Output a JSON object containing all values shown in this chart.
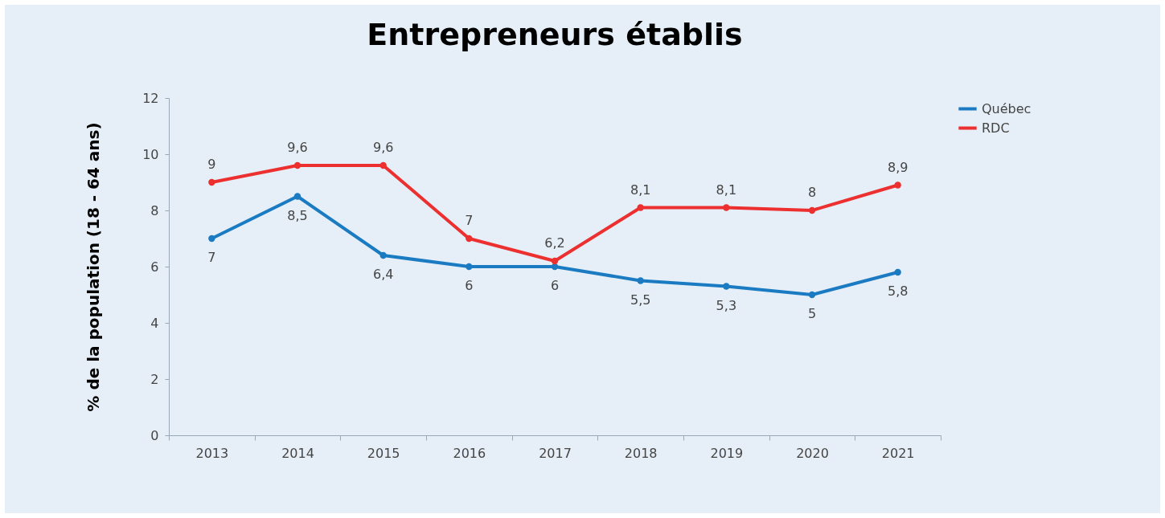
{
  "chart_data": {
    "type": "line",
    "title": "Entrepreneurs établis",
    "ylabel": "% de la population (18 - 64 ans)",
    "categories": [
      "2013",
      "2014",
      "2015",
      "2016",
      "2017",
      "2018",
      "2019",
      "2020",
      "2021"
    ],
    "series": [
      {
        "name": "Québec",
        "color": "#1b7bc2",
        "values": [
          7,
          8.5,
          6.4,
          6,
          6,
          5.5,
          5.3,
          5,
          5.8
        ],
        "value_labels": [
          "7",
          "8,5",
          "6,4",
          "6",
          "6",
          "5,5",
          "5,3",
          "5",
          "5,8"
        ]
      },
      {
        "name": "RDC",
        "color": "#ec2f2f",
        "values": [
          9,
          9.6,
          9.6,
          7,
          6.2,
          8.1,
          8.1,
          8,
          8.9
        ],
        "value_labels": [
          "9",
          "9,6",
          "9,6",
          "7",
          "6,2",
          "8,1",
          "8,1",
          "8",
          "8,9"
        ]
      }
    ],
    "ylim": [
      0,
      12
    ],
    "yticks": [
      0,
      2,
      4,
      6,
      8,
      10,
      12
    ],
    "grid": false,
    "legend": "right",
    "marker": "circle",
    "line_style": "solid"
  }
}
